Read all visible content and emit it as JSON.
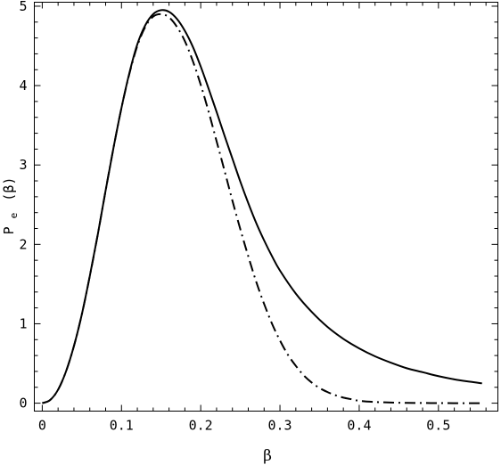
{
  "chart_data": {
    "type": "line",
    "xlabel": "β",
    "ylabel": {
      "main": "P",
      "sub": "e",
      "arg": "(β)"
    },
    "xlim": [
      -0.01,
      0.575
    ],
    "ylim": [
      -0.1,
      5.05
    ],
    "xticks": [
      0,
      0.1,
      0.2,
      0.3,
      0.4,
      0.5
    ],
    "xtick_labels": [
      "0",
      "0.1",
      "0.2",
      "0.3",
      "0.4",
      "0.5"
    ],
    "yticks": [
      0,
      1,
      2,
      3,
      4,
      5
    ],
    "ytick_labels": [
      "0",
      "1",
      "2",
      "3",
      "4",
      "5"
    ],
    "grid": false,
    "series": [
      {
        "style": "solid",
        "color": "#000000",
        "x": [
          0,
          0.01,
          0.02,
          0.03,
          0.04,
          0.05,
          0.06,
          0.07,
          0.08,
          0.09,
          0.1,
          0.11,
          0.12,
          0.13,
          0.14,
          0.15,
          0.16,
          0.17,
          0.18,
          0.19,
          0.2,
          0.21,
          0.22,
          0.23,
          0.24,
          0.25,
          0.26,
          0.27,
          0.28,
          0.29,
          0.3,
          0.32,
          0.34,
          0.36,
          0.38,
          0.4,
          0.42,
          0.44,
          0.46,
          0.48,
          0.5,
          0.52,
          0.54,
          0.555
        ],
        "y": [
          0.0,
          0.04,
          0.17,
          0.4,
          0.72,
          1.12,
          1.6,
          2.12,
          2.68,
          3.22,
          3.72,
          4.16,
          4.52,
          4.76,
          4.9,
          4.95,
          4.93,
          4.84,
          4.69,
          4.49,
          4.24,
          3.96,
          3.67,
          3.37,
          3.08,
          2.79,
          2.52,
          2.27,
          2.05,
          1.85,
          1.67,
          1.38,
          1.15,
          0.96,
          0.81,
          0.69,
          0.59,
          0.51,
          0.44,
          0.39,
          0.34,
          0.3,
          0.27,
          0.25
        ]
      },
      {
        "style": "dash-dot",
        "color": "#000000",
        "x": [
          0,
          0.01,
          0.02,
          0.03,
          0.04,
          0.05,
          0.06,
          0.07,
          0.08,
          0.09,
          0.1,
          0.11,
          0.12,
          0.13,
          0.14,
          0.15,
          0.16,
          0.17,
          0.18,
          0.19,
          0.2,
          0.21,
          0.22,
          0.23,
          0.24,
          0.25,
          0.26,
          0.27,
          0.28,
          0.29,
          0.3,
          0.31,
          0.32,
          0.33,
          0.34,
          0.35,
          0.36,
          0.37,
          0.38,
          0.39,
          0.4,
          0.42,
          0.44,
          0.46,
          0.48,
          0.5,
          0.52,
          0.54,
          0.555
        ],
        "y": [
          0.0,
          0.04,
          0.17,
          0.4,
          0.72,
          1.12,
          1.6,
          2.12,
          2.68,
          3.22,
          3.72,
          4.15,
          4.5,
          4.74,
          4.87,
          4.9,
          4.86,
          4.74,
          4.56,
          4.31,
          4.01,
          3.67,
          3.3,
          2.93,
          2.55,
          2.19,
          1.85,
          1.53,
          1.25,
          1.0,
          0.79,
          0.61,
          0.47,
          0.35,
          0.26,
          0.19,
          0.14,
          0.1,
          0.07,
          0.05,
          0.03,
          0.015,
          0.008,
          0.004,
          0.002,
          0.001,
          0.0,
          0.0,
          0.0
        ]
      }
    ]
  }
}
